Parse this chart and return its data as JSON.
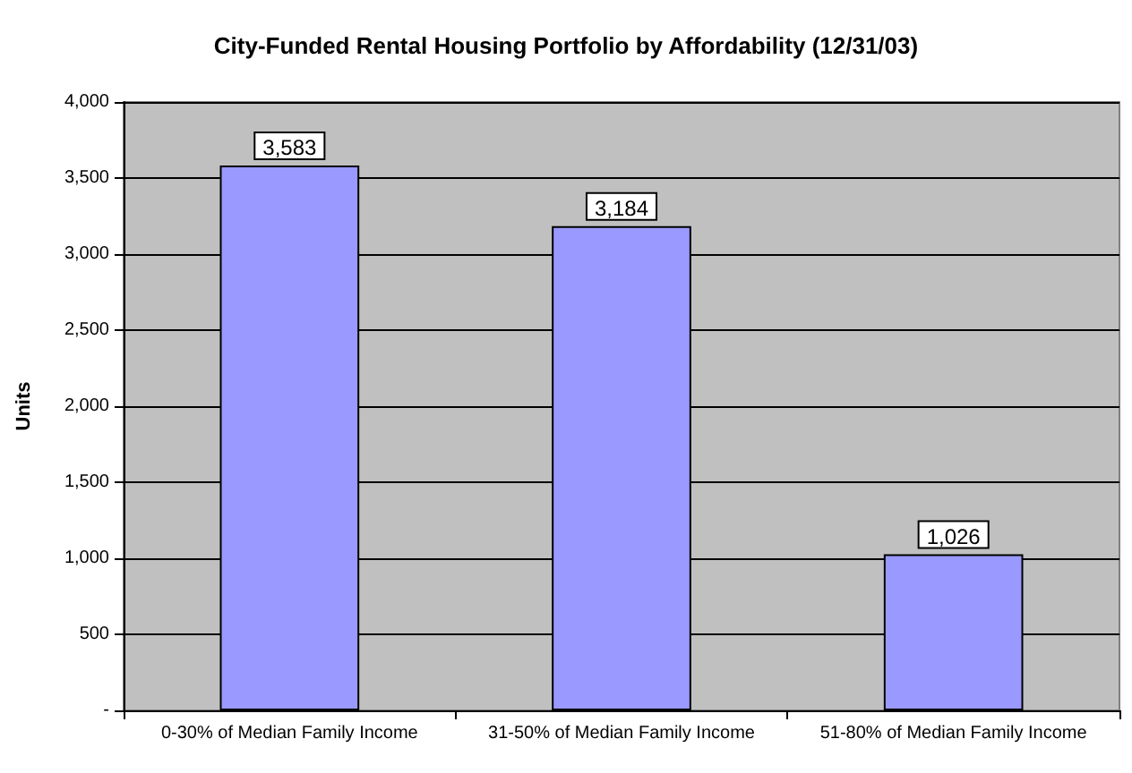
{
  "chart_data": {
    "type": "bar",
    "title": "City-Funded Rental Housing Portfolio by Affordability (12/31/03)",
    "ylabel": "Units",
    "categories": [
      "0-30% of Median Family Income",
      "31-50% of Median Family Income",
      "51-80% of Median Family Income"
    ],
    "values": [
      3583,
      3184,
      1026
    ],
    "value_labels": [
      "3,583",
      "3,184",
      "1,026"
    ],
    "color": "#9999ff",
    "ylim": [
      0,
      4000
    ],
    "yticks": [
      {
        "value": 0,
        "label": "-"
      },
      {
        "value": 500,
        "label": "500"
      },
      {
        "value": 1000,
        "label": "1,000"
      },
      {
        "value": 1500,
        "label": "1,500"
      },
      {
        "value": 2000,
        "label": "2,000"
      },
      {
        "value": 2500,
        "label": "2,500"
      },
      {
        "value": 3000,
        "label": "3,000"
      },
      {
        "value": 3500,
        "label": "3,500"
      },
      {
        "value": 4000,
        "label": "4,000"
      }
    ],
    "grid": "y"
  }
}
